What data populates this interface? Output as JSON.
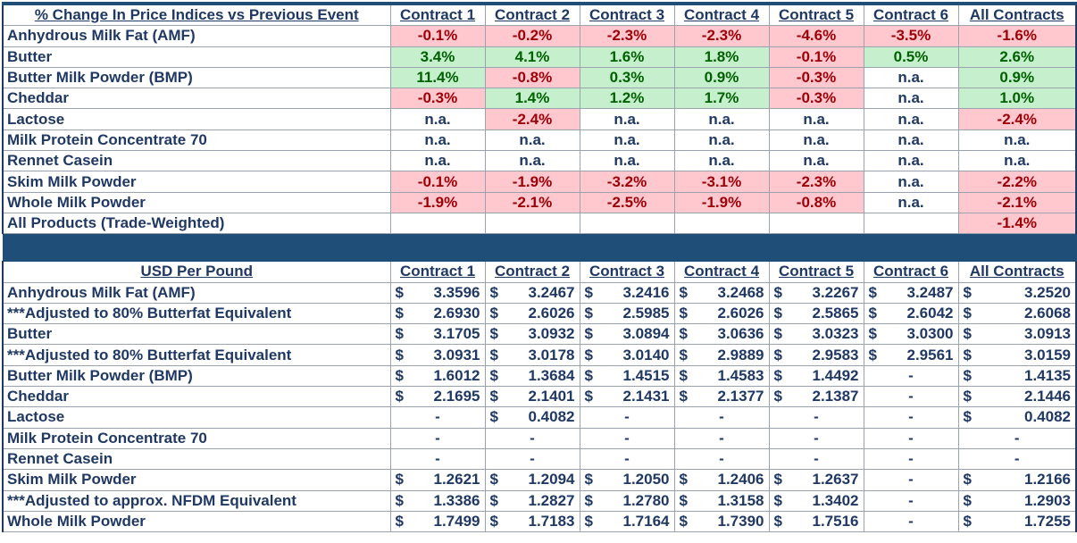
{
  "pct_header": [
    "% Change In Price Indices vs Previous Event",
    "Contract 1",
    "Contract 2",
    "Contract 3",
    "Contract 4",
    "Contract 5",
    "Contract 6",
    "All Contracts"
  ],
  "pct_rows": [
    {
      "label": "Anhydrous Milk Fat (AMF)",
      "cells": [
        {
          "v": "-0.1%",
          "s": "red"
        },
        {
          "v": "-0.2%",
          "s": "red"
        },
        {
          "v": "-2.3%",
          "s": "red"
        },
        {
          "v": "-2.3%",
          "s": "red"
        },
        {
          "v": "-4.6%",
          "s": "red"
        },
        {
          "v": "-3.5%",
          "s": "red"
        },
        {
          "v": "-1.6%",
          "s": "red"
        }
      ]
    },
    {
      "label": "Butter",
      "cells": [
        {
          "v": "3.4%",
          "s": "green"
        },
        {
          "v": "4.1%",
          "s": "green"
        },
        {
          "v": "1.6%",
          "s": "green"
        },
        {
          "v": "1.8%",
          "s": "green"
        },
        {
          "v": "-0.1%",
          "s": "red"
        },
        {
          "v": "0.5%",
          "s": "green"
        },
        {
          "v": "2.6%",
          "s": "green"
        }
      ]
    },
    {
      "label": "Butter Milk Powder (BMP)",
      "cells": [
        {
          "v": "11.4%",
          "s": "green"
        },
        {
          "v": "-0.8%",
          "s": "red"
        },
        {
          "v": "0.3%",
          "s": "green"
        },
        {
          "v": "0.9%",
          "s": "green"
        },
        {
          "v": "-0.3%",
          "s": "red"
        },
        {
          "v": "n.a.",
          "s": ""
        },
        {
          "v": "0.9%",
          "s": "green"
        }
      ]
    },
    {
      "label": "Cheddar",
      "cells": [
        {
          "v": "-0.3%",
          "s": "red"
        },
        {
          "v": "1.4%",
          "s": "green"
        },
        {
          "v": "1.2%",
          "s": "green"
        },
        {
          "v": "1.7%",
          "s": "green"
        },
        {
          "v": "-0.3%",
          "s": "red"
        },
        {
          "v": "n.a.",
          "s": ""
        },
        {
          "v": "1.0%",
          "s": "green"
        }
      ]
    },
    {
      "label": "Lactose",
      "cells": [
        {
          "v": "n.a.",
          "s": ""
        },
        {
          "v": "-2.4%",
          "s": "red"
        },
        {
          "v": "n.a.",
          "s": ""
        },
        {
          "v": "n.a.",
          "s": ""
        },
        {
          "v": "n.a.",
          "s": ""
        },
        {
          "v": "n.a.",
          "s": ""
        },
        {
          "v": "-2.4%",
          "s": "red"
        }
      ]
    },
    {
      "label": "Milk Protein Concentrate 70",
      "cells": [
        {
          "v": "n.a.",
          "s": ""
        },
        {
          "v": "n.a.",
          "s": ""
        },
        {
          "v": "n.a.",
          "s": ""
        },
        {
          "v": "n.a.",
          "s": ""
        },
        {
          "v": "n.a.",
          "s": ""
        },
        {
          "v": "n.a.",
          "s": ""
        },
        {
          "v": "n.a.",
          "s": ""
        }
      ]
    },
    {
      "label": "Rennet Casein",
      "cells": [
        {
          "v": "n.a.",
          "s": ""
        },
        {
          "v": "n.a.",
          "s": ""
        },
        {
          "v": "n.a.",
          "s": ""
        },
        {
          "v": "n.a.",
          "s": ""
        },
        {
          "v": "n.a.",
          "s": ""
        },
        {
          "v": "n.a.",
          "s": ""
        },
        {
          "v": "n.a.",
          "s": ""
        }
      ]
    },
    {
      "label": "Skim Milk Powder",
      "cells": [
        {
          "v": "-0.1%",
          "s": "red"
        },
        {
          "v": "-1.9%",
          "s": "red"
        },
        {
          "v": "-3.2%",
          "s": "red"
        },
        {
          "v": "-3.1%",
          "s": "red"
        },
        {
          "v": "-2.3%",
          "s": "red"
        },
        {
          "v": "n.a.",
          "s": ""
        },
        {
          "v": "-2.2%",
          "s": "red"
        }
      ]
    },
    {
      "label": "Whole Milk Powder",
      "cells": [
        {
          "v": "-1.9%",
          "s": "red"
        },
        {
          "v": "-2.1%",
          "s": "red"
        },
        {
          "v": "-2.5%",
          "s": "red"
        },
        {
          "v": "-1.9%",
          "s": "red"
        },
        {
          "v": "-0.8%",
          "s": "red"
        },
        {
          "v": "n.a.",
          "s": ""
        },
        {
          "v": "-2.1%",
          "s": "red"
        }
      ]
    },
    {
      "label": "All Products (Trade-Weighted)",
      "cells": [
        {
          "v": "",
          "s": ""
        },
        {
          "v": "",
          "s": ""
        },
        {
          "v": "",
          "s": ""
        },
        {
          "v": "",
          "s": ""
        },
        {
          "v": "",
          "s": ""
        },
        {
          "v": "",
          "s": ""
        },
        {
          "v": "-1.4%",
          "s": "red"
        }
      ]
    }
  ],
  "usd_header": [
    "USD Per Pound",
    "Contract 1",
    "Contract 2",
    "Contract 3",
    "Contract 4",
    "Contract 5",
    "Contract 6",
    "All Contracts"
  ],
  "currency_symbol": "$",
  "dash": "-",
  "usd_rows": [
    {
      "label": "Anhydrous Milk Fat (AMF)",
      "values": [
        "3.3596",
        "3.2467",
        "3.2416",
        "3.2468",
        "3.2267",
        "3.2487",
        "3.2520"
      ]
    },
    {
      "label": "***Adjusted to 80% Butterfat Equivalent",
      "values": [
        "2.6930",
        "2.6026",
        "2.5985",
        "2.6026",
        "2.5865",
        "2.6042",
        "2.6068"
      ]
    },
    {
      "label": "Butter",
      "values": [
        "3.1705",
        "3.0932",
        "3.0894",
        "3.0636",
        "3.0323",
        "3.0300",
        "3.0913"
      ]
    },
    {
      "label": "***Adjusted to 80% Butterfat Equivalent",
      "values": [
        "3.0931",
        "3.0178",
        "3.0140",
        "2.9889",
        "2.9583",
        "2.9561",
        "3.0159"
      ]
    },
    {
      "label": "Butter Milk Powder (BMP)",
      "values": [
        "1.6012",
        "1.3684",
        "1.4515",
        "1.4583",
        "1.4492",
        "-",
        "1.4135"
      ]
    },
    {
      "label": "Cheddar",
      "values": [
        "2.1695",
        "2.1401",
        "2.1431",
        "2.1377",
        "2.1387",
        "-",
        "2.1446"
      ]
    },
    {
      "label": "Lactose",
      "values": [
        "-",
        "0.4082",
        "-",
        "-",
        "-",
        "-",
        "0.4082"
      ]
    },
    {
      "label": "Milk Protein Concentrate 70",
      "values": [
        "-",
        "-",
        "-",
        "-",
        "-",
        "-",
        "-"
      ]
    },
    {
      "label": "Rennet Casein",
      "values": [
        "-",
        "-",
        "-",
        "-",
        "-",
        "-",
        "-"
      ]
    },
    {
      "label": "Skim Milk Powder",
      "values": [
        "1.2621",
        "1.2094",
        "1.2050",
        "1.2406",
        "1.2637",
        "-",
        "1.2166"
      ]
    },
    {
      "label": "***Adjusted to approx. NFDM Equivalent",
      "values": [
        "1.3386",
        "1.2827",
        "1.2780",
        "1.3158",
        "1.3402",
        "-",
        "1.2903"
      ]
    },
    {
      "label": "Whole Milk Powder",
      "values": [
        "1.7499",
        "1.7183",
        "1.7164",
        "1.7390",
        "1.7516",
        "-",
        "1.7255"
      ]
    }
  ],
  "colors": {
    "negative_bg": "#ffc7ce",
    "negative_text": "#9c0006",
    "positive_bg": "#c6efce",
    "positive_text": "#006100",
    "header_band": "#1f4e79",
    "text": "#1f3864"
  }
}
